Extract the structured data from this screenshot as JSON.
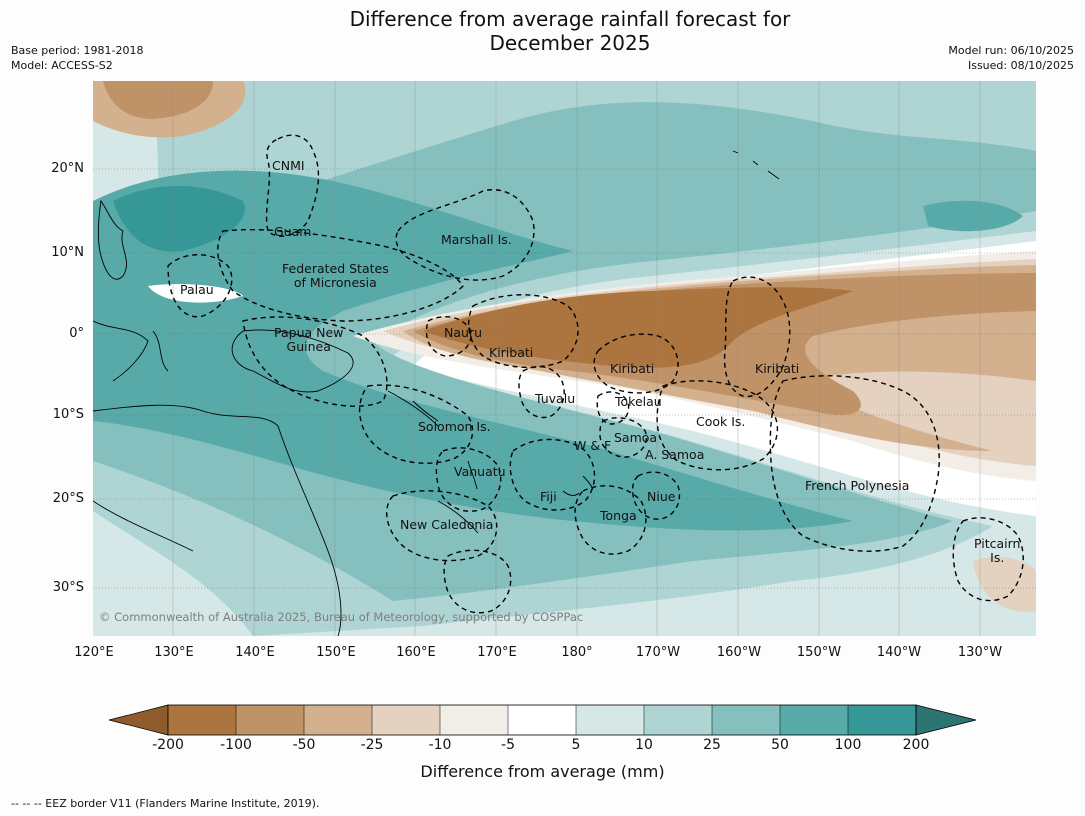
{
  "title_line1": "Difference from average rainfall forecast for",
  "title_line2": "December 2025",
  "meta": {
    "base_period": "Base period: 1981-2018",
    "model": "Model: ACCESS-S2",
    "model_run": "Model run: 06/10/2025",
    "issued": "Issued: 08/10/2025"
  },
  "map": {
    "lon_labels": [
      "120°E",
      "130°E",
      "140°E",
      "150°E",
      "160°E",
      "170°E",
      "180°",
      "170°W",
      "160°W",
      "150°W",
      "140°W",
      "130°W"
    ],
    "lat_labels": [
      "20°N",
      "10°N",
      "0°",
      "10°S",
      "20°S",
      "30°S"
    ],
    "places": {
      "cnmi": "CNMI",
      "guam": "Guam",
      "marshall": "Marshall Is.",
      "fsm1": "Federated States",
      "fsm2": "of Micronesia",
      "palau": "Palau",
      "png1": "Papua New",
      "png2": "Guinea",
      "nauru": "Nauru",
      "kiribati_w": "Kiribati",
      "kiribati_c": "Kiribati",
      "kiribati_e": "Kiribati",
      "tuvalu": "Tuvalu",
      "tokelau": "Tokelau",
      "cook": "Cook Is.",
      "solomon": "Solomon Is.",
      "wf": "W & F",
      "samoa": "Samoa",
      "asamoa": "A. Samoa",
      "vanuatu": "Vanuatu",
      "fiji": "Fiji",
      "niue": "Niue",
      "tonga": "Tonga",
      "newcal": "New Caledonia",
      "frpoly": "French Polynesia",
      "pitcairn1": "Pitcairn",
      "pitcairn2": "Is."
    },
    "copyright": "© Commonwealth of Australia 2025, Bureau of Meteorology, supported by COSPPac"
  },
  "colorbar": {
    "ticks": [
      "-200",
      "-100",
      "-50",
      "-25",
      "-10",
      "-5",
      "5",
      "10",
      "25",
      "50",
      "100",
      "200"
    ],
    "colors": [
      "#8f5a2c",
      "#ac7540",
      "#bf9367",
      "#d3b08e",
      "#e4d1bf",
      "#f2ede6",
      "#ffffff",
      "#d5e8e7",
      "#aed5d4",
      "#85c0bf",
      "#58aaa9",
      "#359896",
      "#2c7572"
    ],
    "label": "Difference from average (mm)"
  },
  "footnote": "--  --  -- EEZ border V11 (Flanders Marine Institute, 2019)."
}
